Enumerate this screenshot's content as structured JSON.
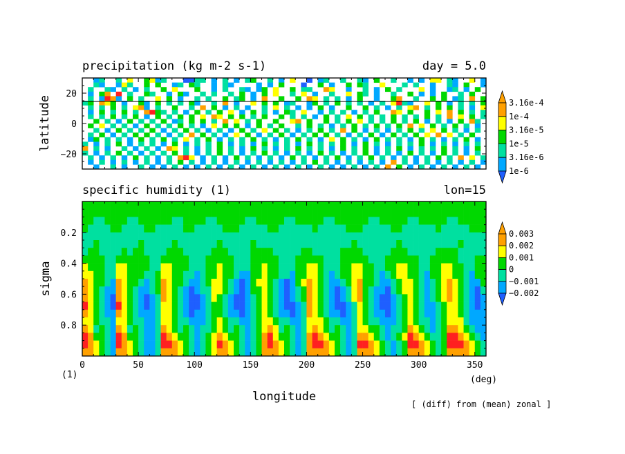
{
  "colors": {
    "levels": [
      "#1f5fff",
      "#00a8ff",
      "#00e0a0",
      "#00d800",
      "#ffff00",
      "#ffa000",
      "#ff2020"
    ],
    "axis": "#000000",
    "background": "#ffffff"
  },
  "chart_data": [
    {
      "type": "heatmap",
      "title": "precipitation (kg m-2 s-1)",
      "subtitle": "day = 5.0",
      "xlabel": "",
      "ylabel": "latitude",
      "xlim": [
        0,
        360
      ],
      "ylim": [
        -30,
        30
      ],
      "yticks": [
        -20,
        0,
        20
      ],
      "ytick_labels": [
        "−20",
        "0",
        "20"
      ],
      "reference_line_latitude": 14.5,
      "colorbar": {
        "labels": [
          "3.16e-4",
          "1e-4",
          "3.16e-5",
          "1e-5",
          "3.16e-6",
          "1e-6"
        ],
        "levels": [
          1e-06,
          3.16e-06,
          1e-05,
          3.16e-05,
          0.0001,
          0.000316
        ]
      },
      "cells_x": 72,
      "cells_y": 20,
      "cells_levels": [
        "--12--2-4--3412---0022-1-2-1-23--2-1-4--0-12--2--21-3--2--1-1-44-21--4-1",
        "--21--142--3-3--12-32--1-21----1-1-3---0--3-1--3-32--4---2-2--1--21-3--1",
        "-2--21-2-1-2--3-4---3--1-2--21-13-4--3-22--54--1--2-1-3-2---4-1--12-1-3-",
        "-1-35-6-2--32--1-31--2-2--2-3-1-3-4--2-4-1--2--4-32-1--2--3-1-1-3--2-3--",
        "-2-1651-3-2--4-3-1--2-2--3-23-1-5--3--3-54-2-2-1-3--1--35--2--3-3-12-5-3",
        "23-543-1--31-3-2-2-31--2-5-1--4-3-3-12--13-2-3-2-2-1-2-4621--4-3-1-2-2-3",
        "-2-2-3-2-451-2--3--2-5-3-1-2-1--2-4-2-1-1-3-1--3--3-2-1-2-45-2-3-3-2-1-4",
        "-1-3-2-3-2-5632-2-1-3-2-3-4-1-3-2-1-32-4--1-2-2-1-2-3--54-3--3-4-5-3-2-2",
        "-2-2-3-2-3-1-3-2-3-3-4-54-3-3-2-3--3-2-2-1-3-2-4-3-2-2-3-2-2-3-2-5-4-3-2",
        "--3-2-1-3-2-2-3-12-3-3-2-5-4-2-3--3--45-3--3-2-3-4-2-2-3-2-3-1-2-1-3-52-",
        "-3-4-2-2-1-3-2-2-3-2-1-4-3-3-1-3-2-3--2-3-2-1-2-3-2-3-2-3-5-4-3-2-3-2-1-",
        "--2-1-3-2-2-3-1-2-3-2-1-2-1-3-2-4-3-2-1-2-3-2-5-3-1-2-1-2-3-2-4-3-2-1-2-",
        "-2-3-1-2-3-3-2-1-2-5-3-2-1-4-3-1-2-3-1-2-3-3-2-1-2-3-1-3-2-3-4-5-4-2-3--",
        "-13-2-2-1-3-2-3-2-4-2-3-1-2-2-3-2-1-2-3-2-1-4-3-2-1-3-2-2-1-3-2-1-2-3-1-",
        "2-1-2-3-1-2-2-1-3-1-2-2-3-1-2-1-3-2-2-1-3-2-2-3-1-3-2-1-2-2-3-1-2-1-2-2-",
        "5-2-1--2-1-2-1-54-2-1-2-3-2-1-3-2-1-2-3-2-2-1-3-2-3-1-2-3-1-2-2-3-2-1-3-",
        "2-1-2-3-2-1-2-2-3-2-1-2-3-2-1-2-3-2-1-2-1-3-2-1-2-3-1-2-1-3-2-1-3-2-1-2-",
        "-2-1-2-1-3-2-1-2-564-1-2-1-3-2-1-2-1-3-2-1-2-3-1-2-3-2-1-2-1-2-3-2-5-4-2",
        "-1-2-1-2-1-2-1-2-3-2-1-2-1-2-1-2-1-2-1-2-3-2-1-2-1-2-1-5-2-1-2-1-2-1-2-1",
        "--1--2-1--2-1-1-2-1-1-2-1-2-1-2-1-2-1-2-1-2-1-1-2-1-2-5-3-1-2-1-2-1-2-1-"
      ]
    },
    {
      "type": "heatmap",
      "title": "specific humidity (1)",
      "subtitle": "lon=15",
      "xlabel": "longitude",
      "ylabel": "sigma",
      "xlim": [
        0,
        360
      ],
      "ylim": [
        1.0,
        0.0
      ],
      "xticks": [
        0,
        50,
        100,
        150,
        200,
        250,
        300,
        350
      ],
      "yticks": [
        0.2,
        0.4,
        0.6,
        0.8
      ],
      "x_units_label": "(deg)",
      "y_units_label": "(1)",
      "note": "[ (diff) from (mean) zonal ]",
      "colorbar": {
        "labels": [
          "0.003",
          "0.002",
          "0.001",
          "0",
          "−0.001",
          "−0.002"
        ],
        "levels": [
          -0.002,
          -0.001,
          0,
          0.001,
          0.002,
          0.003
        ]
      },
      "cells_x": 72,
      "cells_y": 20,
      "cells_levels": [
        "333333333333333333333333333333333333333333333333333333333333333333333333",
        "333333333333333333333333333333333333333333333333333333333333333333333333",
        "332233332233333322333322333332233333223333322333333223333322333332233333",
        "322223322223322222332222233322222332222223222223332222233222222322222333",
        "222222222222222222222222222222222222222222222222222222222222222222222222",
        "223222222232222232222222322222322222222222222222322222223222222222232222",
        "233222232332222333222223332222333322222332222233332222233322222333322222",
        "333322333333223333322233333222333332223333322233333222333333223333322233",
        "433322443333224433322233433222334332223344322233443322334433223344332233",
        "443322443332234433221233433211334332213344321233443321234433213344332133",
        "543321543321235433211234432101344321013454321123453321123443212345432113",
        "543211543211235432101224432101334321012354321012453211023443212345432102",
        "543210543210125432100124321001234321012354321012453210012343212345432101",
        "643210643210124432100123321001234321001254321001243210012343211234432101",
        "543211543211124432101123321101234321101254321101243211012343211234432111",
        "443221443221124432211123432211234432211244432211243221112343221234442111",
        "542321542321125432321223432321234542321245432321244332122354321235543211",
        "653321653321126543321234543321235643321256543321255432123465432236654321",
        "654321654321126654321234654321235654321256654321266543212366543236665432",
        "554321554321125554321234554321235554321255554321255543212355543235555432"
      ]
    }
  ]
}
